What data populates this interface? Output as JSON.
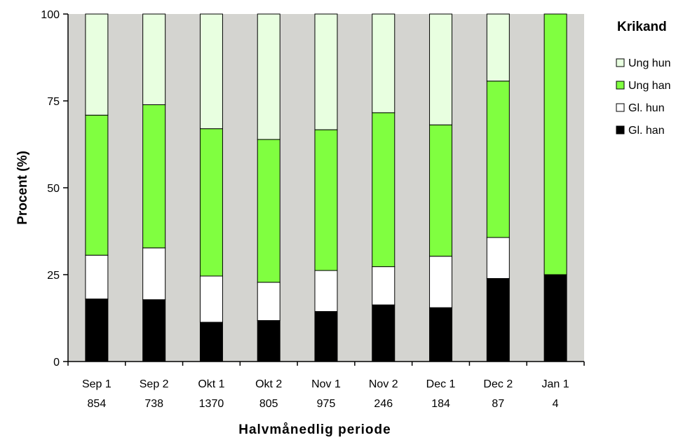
{
  "chart_data": {
    "type": "bar",
    "stacked": true,
    "title": "Krikand",
    "xlabel": "Halvmånedlig periode",
    "ylabel": "Procent (%)",
    "ylim": [
      0,
      100
    ],
    "yticks": [
      0,
      25,
      50,
      75,
      100
    ],
    "categories": [
      "Sep 1",
      "Sep 2",
      "Okt 1",
      "Okt 2",
      "Nov 1",
      "Nov 2",
      "Dec 1",
      "Dec 2",
      "Jan 1"
    ],
    "sample_sizes": [
      "854",
      "738",
      "1370",
      "805",
      "975",
      "246",
      "184",
      "87",
      "4"
    ],
    "grid": false,
    "plot_background": "#d4d4d0",
    "legend_position": "right",
    "series": [
      {
        "name": "Gl. han",
        "color": "#000000",
        "values": [
          18,
          17.8,
          11.3,
          11.8,
          14.4,
          16.3,
          15.5,
          23.9,
          25
        ]
      },
      {
        "name": "Gl. hun",
        "color": "#ffffff",
        "values": [
          12.6,
          14.9,
          13.3,
          11,
          11.8,
          11,
          14.8,
          11.8,
          0
        ]
      },
      {
        "name": "Ung han",
        "color": "#80ff40",
        "values": [
          40.3,
          41.2,
          42.4,
          41.1,
          40.5,
          44.3,
          37.8,
          45,
          75
        ]
      },
      {
        "name": "Ung hun",
        "color": "#e8ffe0",
        "values": [
          29.1,
          26.1,
          33,
          36.1,
          33.3,
          28.4,
          31.9,
          19.3,
          0
        ]
      }
    ],
    "legend_order": [
      "Ung hun",
      "Ung han",
      "Gl. hun",
      "Gl. han"
    ]
  }
}
